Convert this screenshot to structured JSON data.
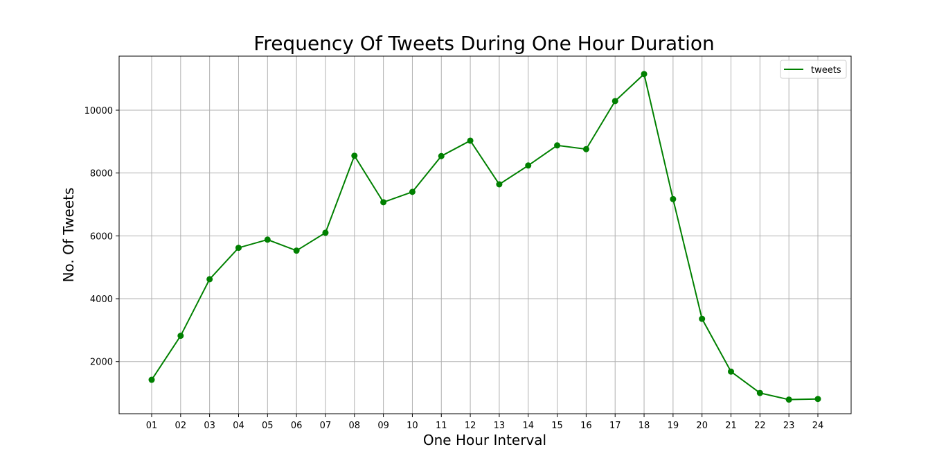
{
  "chart_data": {
    "type": "line",
    "title": "Frequency Of Tweets During One Hour Duration",
    "xlabel": "One Hour Interval",
    "ylabel": "No. Of Tweets",
    "categories": [
      "01",
      "02",
      "03",
      "04",
      "05",
      "06",
      "07",
      "08",
      "09",
      "10",
      "11",
      "12",
      "13",
      "14",
      "15",
      "16",
      "17",
      "18",
      "19",
      "20",
      "21",
      "22",
      "23",
      "24"
    ],
    "series": [
      {
        "name": "tweets",
        "color": "#008000",
        "values": [
          1420,
          2820,
          4620,
          5620,
          5880,
          5530,
          6100,
          8550,
          7070,
          7400,
          8540,
          9030,
          7640,
          8240,
          8880,
          8760,
          10290,
          11150,
          7170,
          3360,
          1680,
          1000,
          790,
          810
        ]
      }
    ],
    "ylim": [
      340,
      11720
    ],
    "yticks": [
      2000,
      4000,
      6000,
      8000,
      10000
    ],
    "grid": true,
    "legend": "top-right",
    "markers": true
  }
}
